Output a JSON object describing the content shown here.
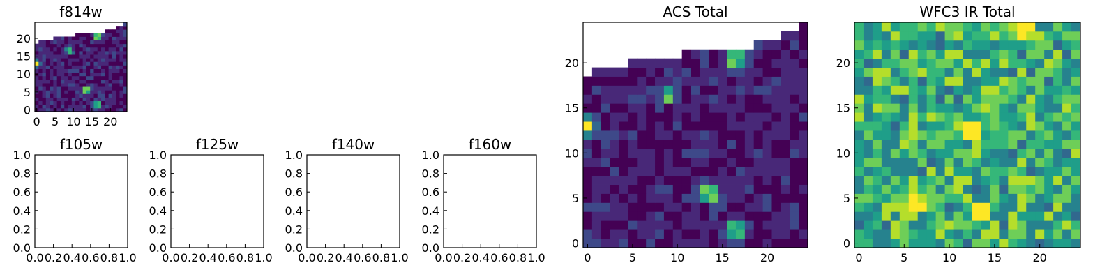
{
  "colors": {
    "colormap": [
      "#440154",
      "#482878",
      "#3e4989",
      "#31688e",
      "#26828e",
      "#1f9e89",
      "#35b779",
      "#6ece58",
      "#b5de2b",
      "#fde725"
    ],
    "frame": "#000000",
    "empty": "#ffffff"
  },
  "chart_data": [
    {
      "type": "heatmap",
      "title": "f814w",
      "xlim": [
        -0.5,
        24.5
      ],
      "ylim": [
        -0.5,
        24.5
      ],
      "xticks": [
        "0",
        "5",
        "10",
        "15",
        "20"
      ],
      "yticks": [
        "0",
        "5",
        "10",
        "15",
        "20"
      ],
      "row_start": [
        0,
        0,
        0,
        0,
        0,
        0,
        0,
        0,
        0,
        0,
        0,
        0,
        0,
        0,
        0,
        0,
        0,
        0,
        0,
        1,
        5,
        11,
        19,
        22,
        24
      ],
      "peaks": [
        {
          "x": 13.5,
          "y": 5.5,
          "amp": 1.0
        },
        {
          "x": 16.5,
          "y": 1.5,
          "amp": 0.85
        },
        {
          "x": 16.5,
          "y": 20.5,
          "amp": 0.95
        },
        {
          "x": 9,
          "y": 16.5,
          "amp": 0.7
        },
        {
          "x": 0,
          "y": 13,
          "amp": 0.9
        }
      ],
      "background_level": 0.12,
      "grid": false
    },
    {
      "type": "heatmap",
      "title": "ACS Total",
      "xlim": [
        -0.5,
        24.5
      ],
      "ylim": [
        -0.5,
        24.5
      ],
      "xticks": [
        "0",
        "5",
        "10",
        "15",
        "20"
      ],
      "yticks": [
        "0",
        "5",
        "10",
        "15",
        "20"
      ],
      "row_start": [
        0,
        0,
        0,
        0,
        0,
        0,
        0,
        0,
        0,
        0,
        0,
        0,
        0,
        0,
        0,
        0,
        0,
        0,
        0,
        1,
        5,
        11,
        19,
        22,
        24
      ],
      "peaks": [
        {
          "x": 13.5,
          "y": 5.5,
          "amp": 1.0
        },
        {
          "x": 16.5,
          "y": 1.5,
          "amp": 0.85
        },
        {
          "x": 16.5,
          "y": 20.5,
          "amp": 0.95
        },
        {
          "x": 9,
          "y": 16.5,
          "amp": 0.7
        },
        {
          "x": 0,
          "y": 13,
          "amp": 0.9
        }
      ],
      "background_level": 0.12,
      "grid": false
    },
    {
      "type": "heatmap",
      "title": "WFC3 IR Total",
      "xlim": [
        -0.5,
        24.5
      ],
      "ylim": [
        -0.5,
        24.5
      ],
      "xticks": [
        "0",
        "5",
        "10",
        "15",
        "20"
      ],
      "yticks": [
        "0",
        "5",
        "10",
        "15",
        "20"
      ],
      "peaks": [
        {
          "x": 12.5,
          "y": 12.5,
          "amp": 1.0
        },
        {
          "x": 13.5,
          "y": 3.5,
          "amp": 1.0
        },
        {
          "x": 6,
          "y": 4,
          "amp": 0.9
        },
        {
          "x": 18,
          "y": 24,
          "amp": 0.85
        }
      ],
      "background_level": 0.62,
      "grid": false
    },
    {
      "type": "heatmap",
      "title": "f105w",
      "empty": true,
      "xlim": [
        0.0,
        1.0
      ],
      "ylim": [
        0.0,
        1.0
      ],
      "xticks": [
        "0.0",
        "0.2",
        "0.4",
        "0.6",
        "0.8",
        "1.0"
      ],
      "yticks": [
        "0.0",
        "0.2",
        "0.4",
        "0.6",
        "0.8",
        "1.0"
      ]
    },
    {
      "type": "heatmap",
      "title": "f125w",
      "empty": true,
      "xlim": [
        0.0,
        1.0
      ],
      "ylim": [
        0.0,
        1.0
      ],
      "xticks": [
        "0.0",
        "0.2",
        "0.4",
        "0.6",
        "0.8",
        "1.0"
      ],
      "yticks": [
        "0.0",
        "0.2",
        "0.4",
        "0.6",
        "0.8",
        "1.0"
      ]
    },
    {
      "type": "heatmap",
      "title": "f140w",
      "empty": true,
      "xlim": [
        0.0,
        1.0
      ],
      "ylim": [
        0.0,
        1.0
      ],
      "xticks": [
        "0.0",
        "0.2",
        "0.4",
        "0.6",
        "0.8",
        "1.0"
      ],
      "yticks": [
        "0.0",
        "0.2",
        "0.4",
        "0.6",
        "0.8",
        "1.0"
      ]
    },
    {
      "type": "heatmap",
      "title": "f160w",
      "empty": true,
      "xlim": [
        0.0,
        1.0
      ],
      "ylim": [
        0.0,
        1.0
      ],
      "xticks": [
        "0.0",
        "0.2",
        "0.4",
        "0.6",
        "0.8",
        "1.0"
      ],
      "yticks": [
        "0.0",
        "0.2",
        "0.4",
        "0.6",
        "0.8",
        "1.0"
      ]
    }
  ]
}
